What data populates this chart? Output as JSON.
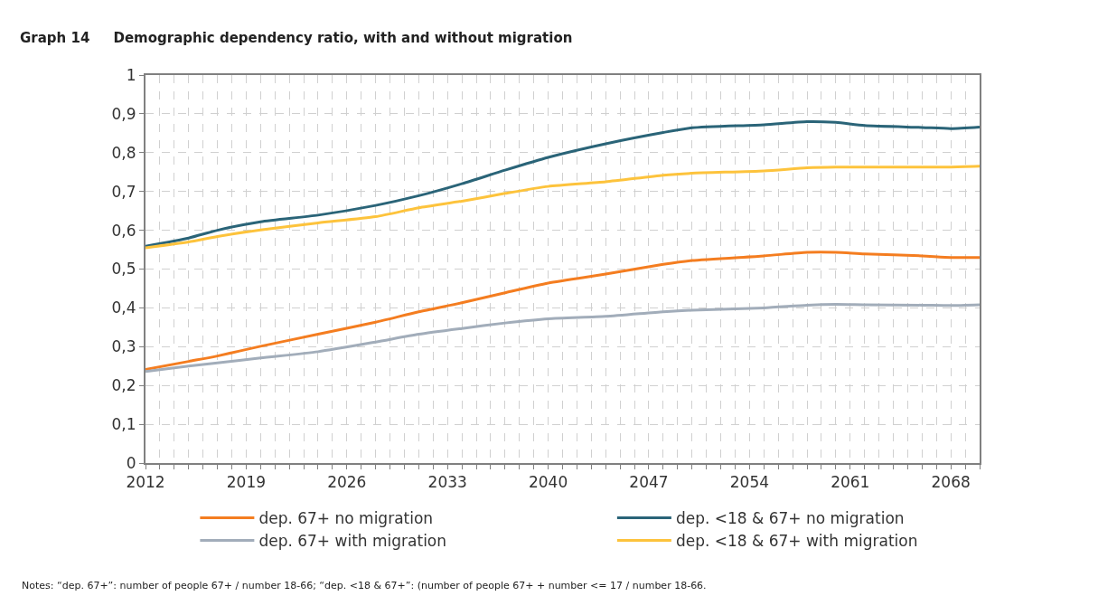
{
  "chart_data": {
    "type": "line",
    "title": "Graph 14     Demographic dependency ratio, with and without migration",
    "annotations": [
      "Notes: “dep. 67+”: number of people 67+ / number 18-66; “dep. <18 & 67+”: (number of people 67+ + number <= 17 / number 18-66."
    ],
    "x": [
      2012,
      2015,
      2017,
      2020,
      2024,
      2028,
      2031,
      2034,
      2037,
      2040,
      2044,
      2048,
      2050,
      2055,
      2058,
      2060,
      2062,
      2066,
      2068,
      2070
    ],
    "series": [
      {
        "name": "dep. 67+ no migration",
        "color": "#f47d20",
        "values": [
          0.241,
          0.262,
          0.276,
          0.301,
          0.332,
          0.363,
          0.39,
          0.413,
          0.439,
          0.464,
          0.487,
          0.512,
          0.522,
          0.534,
          0.543,
          0.543,
          0.539,
          0.534,
          0.53,
          0.53
        ]
      },
      {
        "name": "dep. <18 & 67+ no migration",
        "color": "#2a6478",
        "values": [
          0.559,
          0.58,
          0.6,
          0.622,
          0.639,
          0.664,
          0.689,
          0.72,
          0.755,
          0.788,
          0.823,
          0.852,
          0.864,
          0.872,
          0.88,
          0.878,
          0.87,
          0.865,
          0.862,
          0.866
        ]
      },
      {
        "name": "dep. 67+ with migration",
        "color": "#a2adba",
        "values": [
          0.236,
          0.25,
          0.258,
          0.271,
          0.287,
          0.312,
          0.332,
          0.347,
          0.361,
          0.372,
          0.378,
          0.39,
          0.394,
          0.4,
          0.407,
          0.409,
          0.408,
          0.407,
          0.406,
          0.408
        ]
      },
      {
        "name": "dep. <18 & 67+ with migration",
        "color": "#fdc33c",
        "values": [
          0.555,
          0.57,
          0.584,
          0.601,
          0.619,
          0.635,
          0.658,
          0.675,
          0.695,
          0.713,
          0.725,
          0.742,
          0.747,
          0.753,
          0.761,
          0.763,
          0.763,
          0.763,
          0.763,
          0.765
        ]
      }
    ],
    "xlim": [
      2012,
      2070
    ],
    "xticks": [
      2012,
      {
        "value": 2013,
        "label": null
      },
      {
        "value": 2014,
        "label": null
      },
      {
        "value": 2015,
        "label": null
      },
      {
        "value": 2016,
        "label": null
      },
      {
        "value": 2017,
        "label": null
      },
      {
        "value": 2018,
        "label": null
      },
      2019,
      {
        "value": 2020,
        "label": null
      },
      {
        "value": 2021,
        "label": null
      },
      {
        "value": 2022,
        "label": null
      },
      {
        "value": 2023,
        "label": null
      },
      {
        "value": 2024,
        "label": null
      },
      {
        "value": 2025,
        "label": null
      },
      2026,
      {
        "value": 2027,
        "label": null
      },
      {
        "value": 2028,
        "label": null
      },
      {
        "value": 2029,
        "label": null
      },
      {
        "value": 2030,
        "label": null
      },
      {
        "value": 2031,
        "label": null
      },
      {
        "value": 2032,
        "label": null
      },
      2033,
      {
        "value": 2034,
        "label": null
      },
      {
        "value": 2035,
        "label": null
      },
      {
        "value": 2036,
        "label": null
      },
      {
        "value": 2037,
        "label": null
      },
      {
        "value": 2038,
        "label": null
      },
      {
        "value": 2039,
        "label": null
      },
      2040,
      {
        "value": 2041,
        "label": null
      },
      {
        "value": 2042,
        "label": null
      },
      {
        "value": 2043,
        "label": null
      },
      {
        "value": 2044,
        "label": null
      },
      {
        "value": 2045,
        "label": null
      },
      {
        "value": 2046,
        "label": null
      },
      2047,
      {
        "value": 2048,
        "label": null
      },
      {
        "value": 2049,
        "label": null
      },
      {
        "value": 2050,
        "label": null
      },
      {
        "value": 2051,
        "label": null
      },
      {
        "value": 2052,
        "label": null
      },
      {
        "value": 2053,
        "label": null
      },
      2054,
      {
        "value": 2055,
        "label": null
      },
      {
        "value": 2056,
        "label": null
      },
      {
        "value": 2057,
        "label": null
      },
      {
        "value": 2058,
        "label": null
      },
      {
        "value": 2059,
        "label": null
      },
      {
        "value": 2060,
        "label": null
      },
      2061,
      {
        "value": 2062,
        "label": null
      },
      {
        "value": 2063,
        "label": null
      },
      {
        "value": 2064,
        "label": null
      },
      {
        "value": 2065,
        "label": null
      },
      {
        "value": 2066,
        "label": null
      },
      {
        "value": 2067,
        "label": null
      },
      2068,
      {
        "value": 2069,
        "label": null
      },
      {
        "value": 2070,
        "label": null
      }
    ],
    "ylim": [
      0,
      1
    ],
    "yticks": [
      0,
      {
        "value": 0.1,
        "label": "0,1"
      },
      {
        "value": 0.2,
        "label": "0,2"
      },
      {
        "value": 0.3,
        "label": "0,3"
      },
      {
        "value": 0.4,
        "label": "0,4"
      },
      {
        "value": 0.5,
        "label": "0,5"
      },
      {
        "value": 0.6,
        "label": "0,6"
      },
      {
        "value": 0.7,
        "label": "0,7"
      },
      {
        "value": 0.8,
        "label": "0,8"
      },
      {
        "value": 0.9,
        "label": "0,9"
      },
      1
    ],
    "grid": true,
    "legend": "bottom",
    "marker": "none",
    "line_style": "solid"
  }
}
